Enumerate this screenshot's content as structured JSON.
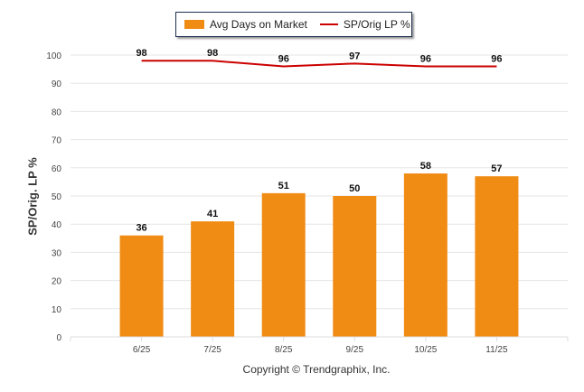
{
  "chart_data": {
    "type": "bar",
    "categories": [
      "6/25",
      "7/25",
      "8/25",
      "9/25",
      "10/25",
      "11/25"
    ],
    "series": [
      {
        "name": "Avg Days on Market",
        "type": "bar",
        "color": "#f08c14",
        "values": [
          36,
          41,
          51,
          50,
          58,
          57
        ]
      },
      {
        "name": "SP/Orig LP %",
        "type": "line",
        "color": "#cc0000",
        "values": [
          98,
          98,
          96,
          97,
          96,
          96
        ]
      }
    ],
    "title": "",
    "xlabel": "",
    "ylabel": "SP/Orig. LP %",
    "ylim": [
      0,
      100
    ],
    "yticks": [
      0,
      10,
      20,
      30,
      40,
      50,
      60,
      70,
      80,
      90,
      100
    ],
    "grid": true,
    "legend_position": "top-center"
  },
  "footer": "Copyright © Trendgraphix, Inc."
}
